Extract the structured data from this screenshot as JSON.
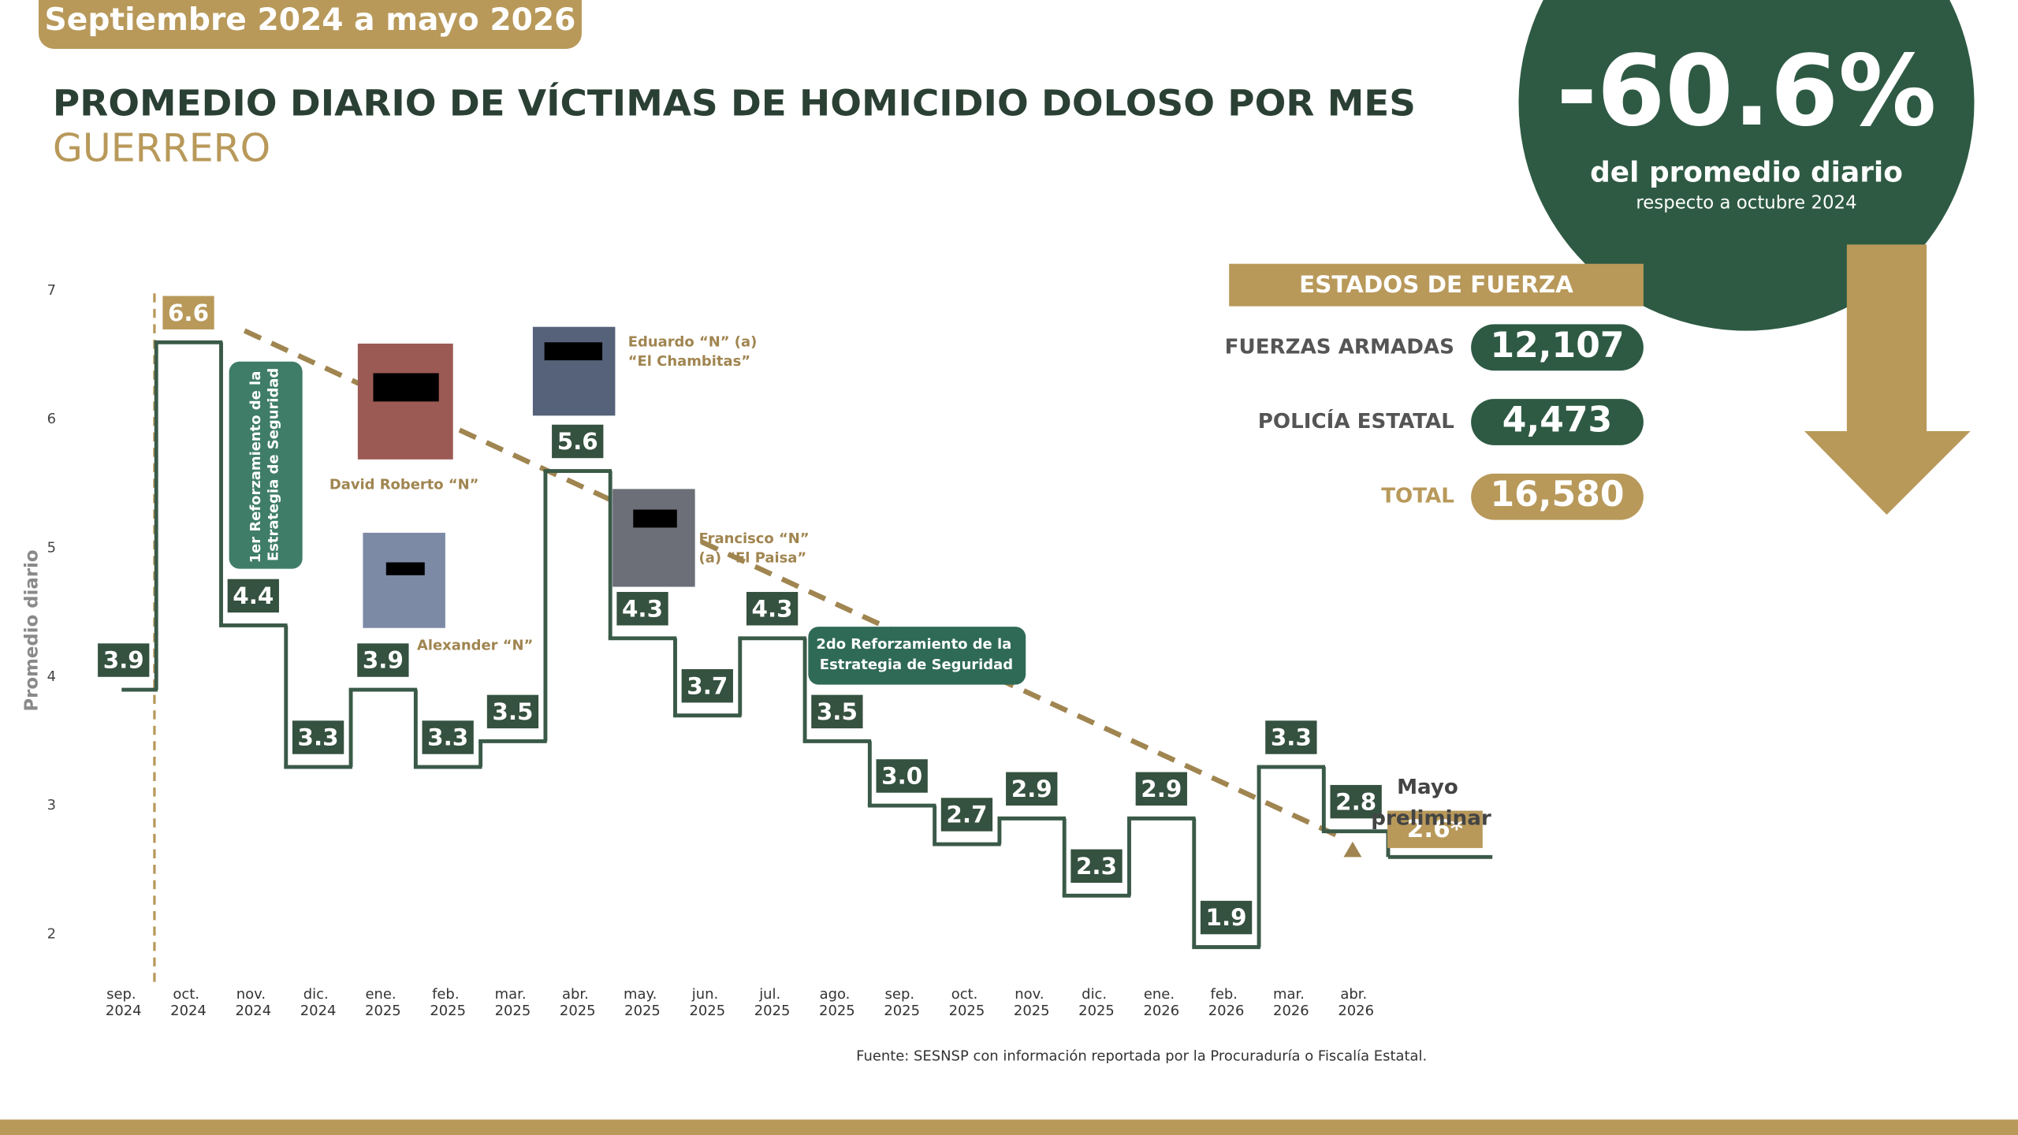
{
  "header": {
    "period": "Septiembre 2024 a mayo 2026",
    "title": "PROMEDIO DIARIO DE VÍCTIMAS DE HOMICIDIO DOLOSO POR MES",
    "subtitle": "GUERRERO"
  },
  "highlight": {
    "value": "-60.6%",
    "caption": "del promedio diario",
    "note": "respecto a octubre 2024"
  },
  "forces": {
    "title": "ESTADOS DE FUERZA",
    "rows": [
      [
        "FUERZAS ARMADAS",
        "12,107"
      ],
      [
        "POLICÍA ESTATAL",
        "4,473"
      ],
      [
        "TOTAL",
        "16,580"
      ]
    ]
  },
  "chart_data": {
    "type": "step",
    "y_label": "Promedio diario",
    "categories": [
      "sep. 2024",
      "oct. 2024",
      "nov. 2024",
      "dic. 2024",
      "ene. 2025",
      "feb. 2025",
      "mar. 2025",
      "abr. 2025",
      "may. 2025",
      "jun. 2025",
      "jul. 2025",
      "ago. 2025",
      "sep. 2025",
      "oct. 2025",
      "nov. 2025",
      "dic. 2025",
      "ene. 2026",
      "feb. 2026",
      "mar. 2026",
      "abr. 2026"
    ],
    "values": [
      3.9,
      6.6,
      4.4,
      3.3,
      3.9,
      3.3,
      3.5,
      5.6,
      4.3,
      3.7,
      4.3,
      3.5,
      3.0,
      2.7,
      2.9,
      2.3,
      2.9,
      1.9,
      3.3,
      2.8
    ],
    "value_labels": [
      "3.9",
      "6.6",
      "4.4",
      "3.3",
      "3.9",
      "3.3",
      "3.5",
      "5.6",
      "4.3",
      "3.7",
      "4.3",
      "3.5",
      "3.0",
      "2.7",
      "2.9",
      "2.3",
      "2.9",
      "1.9",
      "3.3",
      "2.8"
    ],
    "color": "#3a5a48",
    "label_color": "#35513f",
    "peak_color": "#b8995a",
    "preliminary": {
      "label": "Mayo preliminar",
      "value": 2.6,
      "value_label": "2.6*"
    },
    "ylim": [
      1.65,
      7.15
    ],
    "yticks": [
      2,
      3,
      4,
      5,
      6,
      7
    ],
    "annotations": [
      "1er Reforzamiento de la Estrategia de Seguridad",
      "2do Reforzamiento de la Estrategia de Seguridad"
    ],
    "people": [
      "David Roberto “N”",
      "Alexander “N”",
      "Eduardo “N” (a) “El Chambitas”",
      "Francisco “N” (a) “El Paisa”"
    ]
  },
  "source": "Fuente: SESNSP con información reportada por la Procuraduría o Fiscalía Estatal."
}
